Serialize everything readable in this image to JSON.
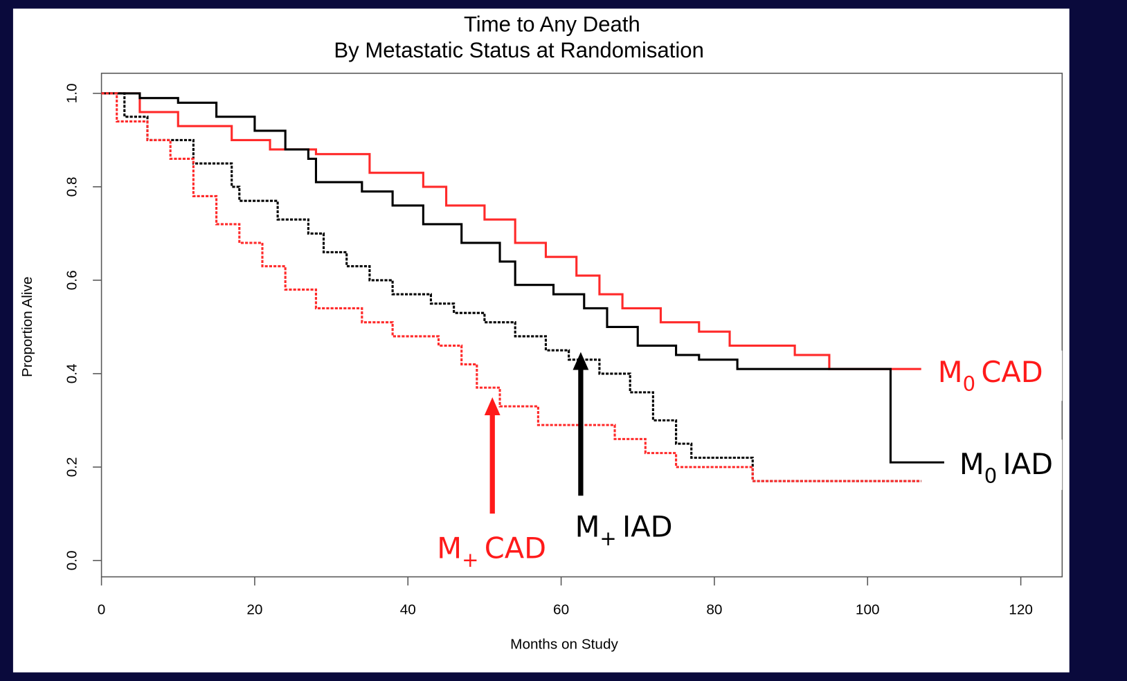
{
  "chart_data": {
    "type": "step",
    "title": "Time to Any Death",
    "subtitle": "By Metastatic Status at Randomisation",
    "x_label": "Months on Study",
    "y_label": "Proportion Alive",
    "xlim": [
      0,
      125.4
    ],
    "ylim": [
      -0.035,
      1.043
    ],
    "xticks": [
      0,
      20,
      40,
      60,
      80,
      100,
      120
    ],
    "yticks": [
      {
        "value": 0,
        "label": "0.0"
      },
      {
        "value": 0.2,
        "label": "0.2"
      },
      {
        "value": 0.4,
        "label": "0.4"
      },
      {
        "value": 0.6,
        "label": "0.6"
      },
      {
        "value": 0.8,
        "label": "0.8"
      },
      {
        "value": 1,
        "label": "1.0"
      }
    ],
    "series": [
      {
        "color": "#ff2a2a",
        "dash": false,
        "x": [
          0,
          5,
          10,
          17,
          22,
          28,
          35,
          42,
          45,
          50,
          54,
          58,
          62,
          65,
          68,
          73,
          78,
          82,
          90.5,
          95,
          107
        ],
        "values": [
          1.0,
          0.96,
          0.93,
          0.9,
          0.88,
          0.87,
          0.83,
          0.8,
          0.76,
          0.73,
          0.68,
          0.65,
          0.61,
          0.57,
          0.54,
          0.51,
          0.49,
          0.46,
          0.44,
          0.41,
          0.41
        ]
      },
      {
        "color": "#000000",
        "dash": false,
        "x": [
          0,
          5,
          10,
          15,
          20,
          24,
          27,
          28,
          34,
          38,
          42,
          47,
          52,
          54,
          59,
          63,
          66,
          70,
          75,
          78,
          83,
          103,
          110
        ],
        "values": [
          1.0,
          0.99,
          0.98,
          0.95,
          0.92,
          0.88,
          0.86,
          0.81,
          0.79,
          0.76,
          0.72,
          0.68,
          0.64,
          0.59,
          0.57,
          0.54,
          0.5,
          0.46,
          0.44,
          0.43,
          0.41,
          0.21,
          0.21
        ]
      },
      {
        "color": "#000000",
        "dash": true,
        "x": [
          0,
          3,
          6,
          12,
          17,
          18,
          23,
          27,
          29,
          32,
          35,
          38,
          43,
          46,
          50,
          54,
          58,
          61,
          65,
          69,
          72,
          75,
          77,
          85,
          107
        ],
        "values": [
          1.0,
          0.95,
          0.9,
          0.85,
          0.8,
          0.77,
          0.73,
          0.7,
          0.66,
          0.63,
          0.6,
          0.57,
          0.55,
          0.53,
          0.51,
          0.48,
          0.45,
          0.43,
          0.4,
          0.36,
          0.3,
          0.25,
          0.22,
          0.17,
          0.17
        ]
      },
      {
        "color": "#ff2a2a",
        "dash": true,
        "x": [
          0,
          2,
          6,
          9,
          12,
          15,
          18,
          21,
          24,
          28,
          34,
          38,
          44,
          47,
          49,
          52,
          57,
          67,
          71,
          75,
          85,
          107
        ],
        "values": [
          1.0,
          0.94,
          0.9,
          0.86,
          0.78,
          0.72,
          0.68,
          0.63,
          0.58,
          0.54,
          0.51,
          0.48,
          0.46,
          0.42,
          0.37,
          0.33,
          0.29,
          0.26,
          0.23,
          0.2,
          0.17,
          0.17
        ]
      }
    ],
    "annotations": [
      {
        "main": "M",
        "sub": "0",
        "rest": "CAD",
        "color": "#ff1a1a"
      },
      {
        "main": "M",
        "sub": "0",
        "rest": "IAD",
        "color": "#000000"
      },
      {
        "main": "M",
        "sub": "+",
        "rest": "IAD",
        "color": "#000000"
      },
      {
        "main": "M",
        "sub": "+",
        "rest": "CAD",
        "color": "#ff1a1a"
      }
    ]
  }
}
